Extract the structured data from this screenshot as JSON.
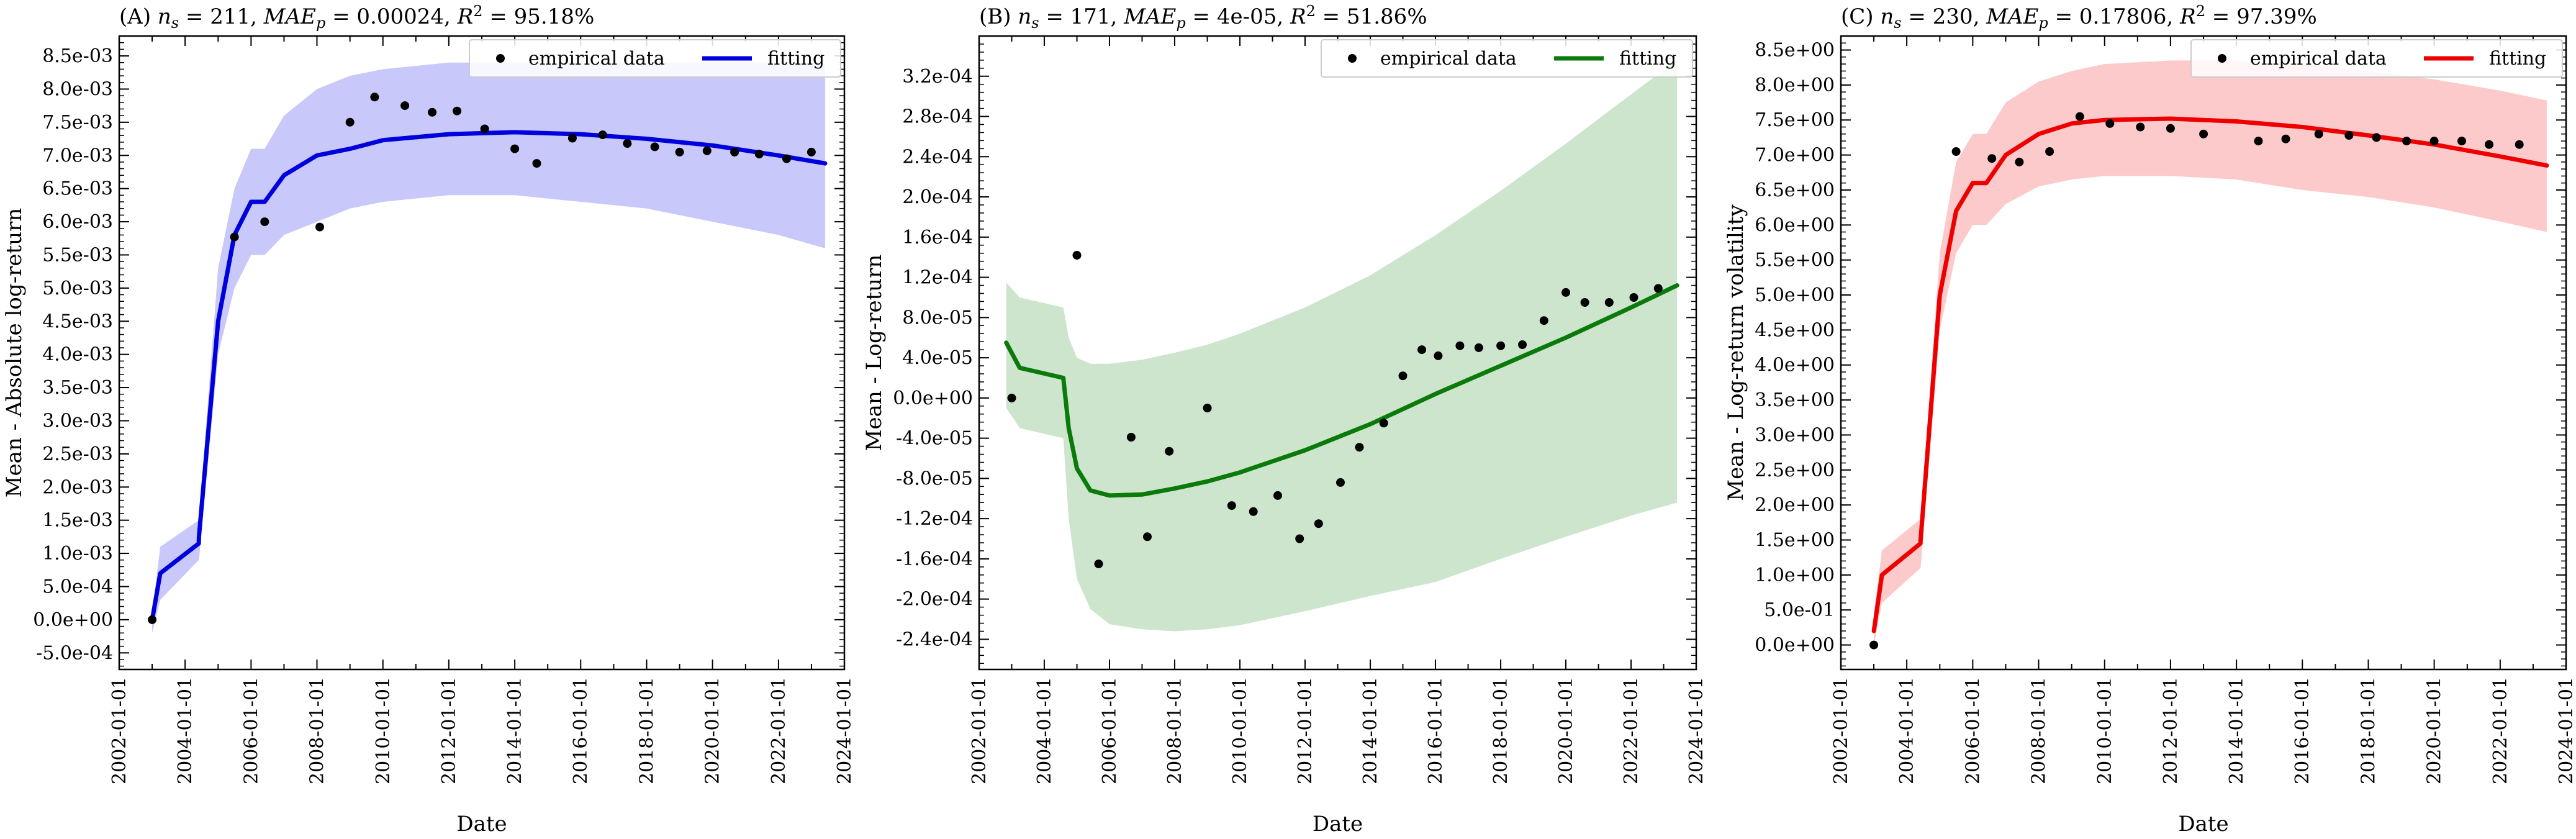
{
  "chart_data": [
    {
      "type": "line",
      "panel": "A",
      "title": "(A) n_s = 211, MAE_p = 0.00024, R^2 = 95.18%",
      "title_parts": {
        "prefix": "(A) ",
        "n": "211",
        "mae": "0.00024",
        "r2": "95.18%"
      },
      "xlabel": "Date",
      "ylabel": "Mean - Absolute log-return",
      "x_ticks": [
        "2002-01-01",
        "2004-01-01",
        "2006-01-01",
        "2008-01-01",
        "2010-01-01",
        "2012-01-01",
        "2014-01-01",
        "2016-01-01",
        "2018-01-01",
        "2020-01-01",
        "2022-01-01",
        "2024-01-01"
      ],
      "xlim": [
        "2002-01-01",
        "2024-01-01"
      ],
      "y_ticks": [
        "-5.0e-04",
        "0.0e+00",
        "5.0e-04",
        "1.0e-03",
        "1.5e-03",
        "2.0e-03",
        "2.5e-03",
        "3.0e-03",
        "3.5e-03",
        "4.0e-03",
        "4.5e-03",
        "5.0e-03",
        "5.5e-03",
        "6.0e-03",
        "6.5e-03",
        "7.0e-03",
        "7.5e-03",
        "8.0e-03",
        "8.5e-03"
      ],
      "ylim": [
        -0.00075,
        0.0088
      ],
      "legend": {
        "placement": "top-right",
        "entries": [
          "empirical data",
          "fitting"
        ]
      },
      "colors": {
        "line": "#0000dd",
        "band": "#c8c8fa",
        "points": "#000000"
      },
      "series": [
        {
          "name": "empirical data",
          "kind": "scatter",
          "x": [
            "2003-01-01",
            "2005-07-01",
            "2006-06-01",
            "2008-02-01",
            "2009-01-01",
            "2009-10-01",
            "2010-09-01",
            "2011-07-01",
            "2012-04-01",
            "2013-02-01",
            "2014-01-01",
            "2014-09-01",
            "2015-10-01",
            "2016-09-01",
            "2017-06-01",
            "2018-04-01",
            "2019-01-01",
            "2019-11-01",
            "2020-09-01",
            "2021-06-01",
            "2022-04-01",
            "2023-01-01"
          ],
          "y": [
            0.0,
            0.00577,
            0.006,
            0.00592,
            0.0075,
            0.00788,
            0.00775,
            0.00765,
            0.00767,
            0.0074,
            0.0071,
            0.00688,
            0.00726,
            0.00731,
            0.00718,
            0.00713,
            0.00705,
            0.00707,
            0.00705,
            0.00702,
            0.00695,
            0.00705
          ]
        },
        {
          "name": "fitting",
          "kind": "line",
          "x": [
            "2003-01-01",
            "2003-04-01",
            "2004-06-01",
            "2004-06-02",
            "2005-01-01",
            "2005-07-01",
            "2006-01-01",
            "2006-06-01",
            "2007-01-01",
            "2008-01-01",
            "2009-01-01",
            "2010-01-01",
            "2012-01-01",
            "2014-01-01",
            "2016-01-01",
            "2018-01-01",
            "2020-01-01",
            "2022-01-01",
            "2023-06-01"
          ],
          "y": [
            0.0,
            0.0007,
            0.00115,
            0.00125,
            0.0045,
            0.0058,
            0.0063,
            0.0063,
            0.0067,
            0.007,
            0.0071,
            0.00723,
            0.00732,
            0.00735,
            0.00732,
            0.00725,
            0.00715,
            0.007,
            0.00688
          ],
          "lower": [
            -0.0002,
            0.0003,
            0.0009,
            0.0009,
            0.004,
            0.005,
            0.0055,
            0.0055,
            0.0058,
            0.006,
            0.0062,
            0.0063,
            0.0064,
            0.0064,
            0.0063,
            0.0062,
            0.006,
            0.0058,
            0.0056
          ],
          "upper": [
            0.0001,
            0.0011,
            0.0015,
            0.0015,
            0.0053,
            0.0065,
            0.0071,
            0.0071,
            0.0076,
            0.008,
            0.0082,
            0.0083,
            0.0084,
            0.0084,
            0.0084,
            0.0084,
            0.0084,
            0.0084,
            0.0084
          ]
        }
      ]
    },
    {
      "type": "line",
      "panel": "B",
      "title": "(B) n_s = 171, MAE_p = 4e-05, R^2 = 51.86%",
      "title_parts": {
        "prefix": "(B) ",
        "n": "171",
        "mae": "4e-05",
        "r2": "51.86%"
      },
      "xlabel": "Date",
      "ylabel": "Mean - Log-return",
      "x_ticks": [
        "2002-01-01",
        "2004-01-01",
        "2006-01-01",
        "2008-01-01",
        "2010-01-01",
        "2012-01-01",
        "2014-01-01",
        "2016-01-01",
        "2018-01-01",
        "2020-01-01",
        "2022-01-01",
        "2024-01-01"
      ],
      "xlim": [
        "2002-01-01",
        "2024-01-01"
      ],
      "y_ticks": [
        "-2.4e-04",
        "-2.0e-04",
        "-1.6e-04",
        "-1.2e-04",
        "-8.0e-05",
        "-4.0e-05",
        "0.0e+00",
        "4.0e-05",
        "8.0e-05",
        "1.2e-04",
        "1.6e-04",
        "2.0e-04",
        "2.4e-04",
        "2.8e-04",
        "3.2e-04"
      ],
      "ylim": [
        -0.00027,
        0.00036
      ],
      "legend": {
        "placement": "top-right",
        "entries": [
          "empirical data",
          "fitting"
        ]
      },
      "colors": {
        "line": "#0a7a0a",
        "band": "#cde5cd",
        "points": "#000000"
      },
      "series": [
        {
          "name": "empirical data",
          "kind": "scatter",
          "x": [
            "2003-01-01",
            "2005-01-01",
            "2005-09-01",
            "2006-09-01",
            "2007-03-01",
            "2007-11-01",
            "2009-01-01",
            "2009-10-01",
            "2010-06-01",
            "2011-03-01",
            "2011-11-01",
            "2012-06-01",
            "2013-02-01",
            "2013-09-01",
            "2014-06-01",
            "2015-01-01",
            "2015-08-01",
            "2016-02-01",
            "2016-10-01",
            "2017-05-01",
            "2018-01-01",
            "2018-09-01",
            "2019-05-01",
            "2020-01-01",
            "2020-08-01",
            "2021-05-01",
            "2022-02-01",
            "2022-11-01"
          ],
          "y": [
            0.0,
            0.000142,
            -0.000165,
            -3.9e-05,
            -0.000138,
            -5.3e-05,
            -1e-05,
            -0.000107,
            -0.000113,
            -9.7e-05,
            -0.00014,
            -0.000125,
            -8.4e-05,
            -4.9e-05,
            -2.5e-05,
            2.2e-05,
            4.8e-05,
            4.2e-05,
            5.2e-05,
            5e-05,
            5.2e-05,
            5.3e-05,
            7.7e-05,
            0.000105,
            9.5e-05,
            9.5e-05,
            0.0001,
            0.000109
          ]
        },
        {
          "name": "fitting",
          "kind": "line",
          "x": [
            "2002-11-01",
            "2003-04-01",
            "2004-08-01",
            "2004-10-01",
            "2005-01-01",
            "2005-06-01",
            "2006-01-01",
            "2007-01-01",
            "2008-01-01",
            "2009-01-01",
            "2010-01-01",
            "2012-01-01",
            "2014-01-01",
            "2016-01-01",
            "2018-01-01",
            "2020-01-01",
            "2022-01-01",
            "2023-06-01"
          ],
          "y": [
            5.5e-05,
            3e-05,
            2e-05,
            -3e-05,
            -7e-05,
            -9.2e-05,
            -9.7e-05,
            -9.6e-05,
            -9e-05,
            -8.3e-05,
            -7.4e-05,
            -5.2e-05,
            -2.6e-05,
            4e-06,
            3.2e-05,
            6e-05,
            9e-05,
            0.000112
          ],
          "lower": [
            -1e-05,
            -3e-05,
            -4e-05,
            -0.00012,
            -0.00018,
            -0.00021,
            -0.000225,
            -0.00023,
            -0.000232,
            -0.00023,
            -0.000226,
            -0.000212,
            -0.000197,
            -0.000183,
            -0.00016,
            -0.000138,
            -0.000117,
            -0.000104
          ],
          "upper": [
            0.000115,
            0.0001,
            9e-05,
            6e-05,
            4e-05,
            3.4e-05,
            3.4e-05,
            3.8e-05,
            4.5e-05,
            5.3e-05,
            6.4e-05,
            9e-05,
            0.000122,
            0.000162,
            0.000206,
            0.000253,
            0.000302,
            0.000336
          ]
        }
      ]
    },
    {
      "type": "line",
      "panel": "C",
      "title": "(C) n_s = 230, MAE_p = 0.17806, R^2 = 97.39%",
      "title_parts": {
        "prefix": "(C) ",
        "n": "230",
        "mae": "0.17806",
        "r2": "97.39%"
      },
      "xlabel": "Date",
      "ylabel": "Mean - Log-return volatility",
      "x_ticks": [
        "2002-01-01",
        "2004-01-01",
        "2006-01-01",
        "2008-01-01",
        "2010-01-01",
        "2012-01-01",
        "2014-01-01",
        "2016-01-01",
        "2018-01-01",
        "2020-01-01",
        "2022-01-01",
        "2024-01-01"
      ],
      "xlim": [
        "2002-01-01",
        "2024-01-01"
      ],
      "y_ticks": [
        "0.0e+00",
        "5.0e-01",
        "1.0e+00",
        "1.5e+00",
        "2.0e+00",
        "2.5e+00",
        "3.0e+00",
        "3.5e+00",
        "4.0e+00",
        "4.5e+00",
        "5.0e+00",
        "5.5e+00",
        "6.0e+00",
        "6.5e+00",
        "7.0e+00",
        "7.5e+00",
        "8.0e+00",
        "8.5e+00"
      ],
      "ylim": [
        -0.35,
        8.7
      ],
      "legend": {
        "placement": "top-right",
        "entries": [
          "empirical data",
          "fitting"
        ]
      },
      "colors": {
        "line": "#ee0000",
        "band": "#fccaca",
        "points": "#000000"
      },
      "series": [
        {
          "name": "empirical data",
          "kind": "scatter",
          "x": [
            "2003-01-01",
            "2005-07-01",
            "2006-08-01",
            "2007-06-01",
            "2008-05-01",
            "2009-04-01",
            "2010-03-01",
            "2011-02-01",
            "2012-01-01",
            "2013-01-01",
            "2014-09-01",
            "2015-07-01",
            "2016-07-01",
            "2017-06-01",
            "2018-04-01",
            "2019-03-01",
            "2020-01-01",
            "2020-11-01",
            "2021-09-01",
            "2022-08-01"
          ],
          "y": [
            0.0,
            7.05,
            6.95,
            6.9,
            7.05,
            7.55,
            7.45,
            7.4,
            7.38,
            7.3,
            7.2,
            7.23,
            7.3,
            7.28,
            7.25,
            7.2,
            7.2,
            7.2,
            7.15,
            7.15
          ]
        },
        {
          "name": "fitting",
          "kind": "line",
          "x": [
            "2003-01-01",
            "2003-04-01",
            "2004-06-01",
            "2004-06-02",
            "2005-01-01",
            "2005-07-01",
            "2006-01-01",
            "2006-06-01",
            "2007-01-01",
            "2008-01-01",
            "2009-01-01",
            "2010-01-01",
            "2012-01-01",
            "2014-01-01",
            "2016-01-01",
            "2018-01-01",
            "2020-01-01",
            "2022-01-01",
            "2023-06-01"
          ],
          "y": [
            0.2,
            1.0,
            1.45,
            1.5,
            5.0,
            6.2,
            6.6,
            6.6,
            7.0,
            7.3,
            7.45,
            7.5,
            7.52,
            7.48,
            7.4,
            7.28,
            7.15,
            6.98,
            6.85
          ],
          "lower": [
            0.0,
            0.6,
            1.1,
            1.1,
            4.5,
            5.6,
            6.0,
            6.0,
            6.3,
            6.55,
            6.65,
            6.7,
            6.7,
            6.65,
            6.5,
            6.4,
            6.25,
            6.05,
            5.9
          ],
          "upper": [
            0.45,
            1.35,
            1.8,
            1.8,
            5.6,
            6.9,
            7.3,
            7.3,
            7.75,
            8.05,
            8.2,
            8.3,
            8.35,
            8.35,
            8.3,
            8.2,
            8.08,
            7.92,
            7.78
          ]
        }
      ]
    }
  ]
}
